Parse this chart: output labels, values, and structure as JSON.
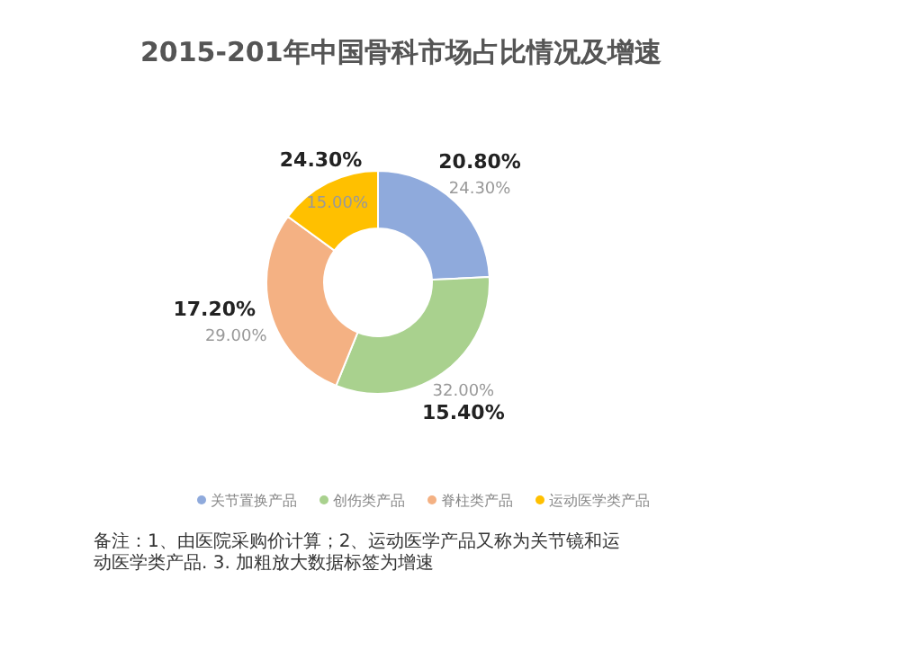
{
  "chart_data": {
    "type": "donut",
    "title": "2015-201年中国骨科市场占比情况及增速",
    "categories": [
      "关节置换产品",
      "创伤类产品",
      "脊柱类产品",
      "运动医学类产品"
    ],
    "values": [
      24.3,
      32.0,
      29.0,
      15.0
    ],
    "value_labels": [
      "24.30%",
      "32.00%",
      "29.00%",
      "15.00%"
    ],
    "colors": [
      "#8faadc",
      "#a9d18e",
      "#f4b183",
      "#ffc000"
    ],
    "legend": "bottom",
    "annotations": [
      {
        "text": "20.80%",
        "x": "关节置换产品"
      },
      {
        "text": "15.40%",
        "x": "创伤类产品"
      },
      {
        "text": "17.20%",
        "x": "脊柱类产品"
      },
      {
        "text": "24.30%",
        "x": "运动医学类产品"
      },
      "备注：1、由医院采购价计算；2、运动医学产品又称为关节镜和运动医学类产品. 3. 加粗放大数据标签为增速"
    ]
  }
}
